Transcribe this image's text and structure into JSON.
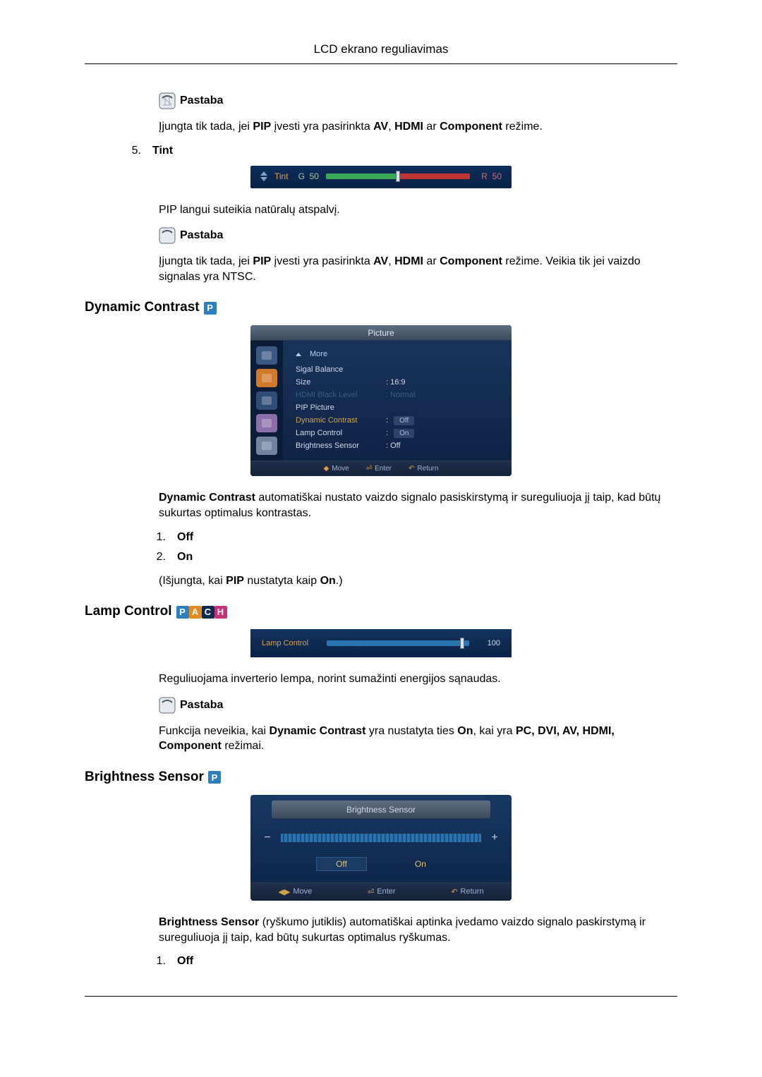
{
  "page": {
    "header_title": "LCD ekrano reguliavimas"
  },
  "note_label": "Pastaba",
  "section1": {
    "note1_text_1": "Įjungta tik tada, jei ",
    "note1_text_2": " įvesti yra pasirinkta ",
    "note1_text_3": " ar ",
    "note1_text_4": " režime.",
    "pip": "PIP",
    "av": "AV",
    "hdmi": "HDMI",
    "component": "Component",
    "item5_num": "5.",
    "item5_label": "Tint",
    "tint_desc": "PIP langui suteikia natūralų atspalvį.",
    "note2_text_1": "Įjungta tik tada, jei ",
    "note2_text_2": " įvesti yra pasirinkta ",
    "note2_text_3": " ar ",
    "note2_text_4": " režime. Veikia tik jei vaizdo signalas yra NTSC."
  },
  "tint_fig": {
    "label": "Tint",
    "g": "G",
    "g_val": "50",
    "r": "R",
    "r_val": "50",
    "thumb_pct": 50,
    "colors": {
      "left": "#3aa85a",
      "right": "#c03434",
      "thumb": "#d9dde4"
    }
  },
  "dynamic_contrast": {
    "heading": "Dynamic Contrast",
    "badges": [
      {
        "t": "P",
        "c": "#2e7fbf"
      }
    ],
    "desc_1": "Dynamic Contrast",
    "desc_2": " automatiškai nustato vaizdo signalo pasiskirstymą ir sureguliuoja jį taip, kad būtų sukurtas optimalus kontrastas.",
    "items": [
      {
        "n": "1.",
        "t": "Off"
      },
      {
        "n": "2.",
        "t": "On"
      }
    ],
    "post_1": "(Išjungta, kai ",
    "post_2": " nustatyta kaip ",
    "post_3": ".)",
    "pip": "PIP",
    "on": "On"
  },
  "osd_fig": {
    "title": "Picture",
    "more": "More",
    "rows": [
      {
        "label": "Sigal Balance",
        "val": "",
        "style": "norm"
      },
      {
        "label": "Size",
        "val": "16:9",
        "style": "norm"
      },
      {
        "label": "HDMI Black Level",
        "val": "Normal",
        "style": "dim"
      },
      {
        "label": "PIP Picture",
        "val": "",
        "style": "norm"
      },
      {
        "label": "Dynamic Contrast",
        "val": "Off",
        "style": "hl"
      },
      {
        "label": "Lamp Control",
        "val": "On",
        "style": "norm_toggle"
      },
      {
        "label": "Brightness Sensor",
        "val": "Off",
        "style": "norm"
      }
    ],
    "footer": {
      "move": "Move",
      "enter": "Enter",
      "return": "Return"
    },
    "side_colors": [
      "#3b5a83",
      "#d17a2e",
      "#2f4e77",
      "#8a6fa8",
      "#6f85a0"
    ]
  },
  "lamp_control": {
    "heading": "Lamp Control",
    "badges": [
      {
        "t": "P",
        "c": "#2e7fbf"
      },
      {
        "t": "A",
        "c": "#e08a1f"
      },
      {
        "t": "C",
        "c": "#0d2b50"
      },
      {
        "t": "H",
        "c": "#c9307a"
      }
    ],
    "desc": "Reguliuojama inverterio lempa, norint sumažinti energijos sąnaudas.",
    "note_1": "Funkcija neveikia, kai ",
    "note_2": " yra nustatyta ties ",
    "note_3": ", kai yra ",
    "note_4": " režimai.",
    "dc": "Dynamic Contrast",
    "on": "On",
    "modes": "PC, DVI, AV, HDMI, Component"
  },
  "lamp_fig": {
    "label": "Lamp Control",
    "value": "100",
    "thumb_pct": 95
  },
  "brightness_sensor": {
    "heading": "Brightness Sensor",
    "badges": [
      {
        "t": "P",
        "c": "#2e7fbf"
      }
    ],
    "desc_1": "Brightness Sensor",
    "desc_2": "  (ryškumo jutiklis) automatiškai aptinka įvedamo vaizdo signalo paskirstymą ir sureguliuoja jį taip, kad būtų sukurtas optimalus ryškumas.",
    "items": [
      {
        "n": "1.",
        "t": "Off"
      }
    ]
  },
  "bs_fig": {
    "title": "Brightness Sensor",
    "off": "Off",
    "on": "On",
    "footer": {
      "move": "Move",
      "enter": "Enter",
      "return": "Return"
    }
  }
}
